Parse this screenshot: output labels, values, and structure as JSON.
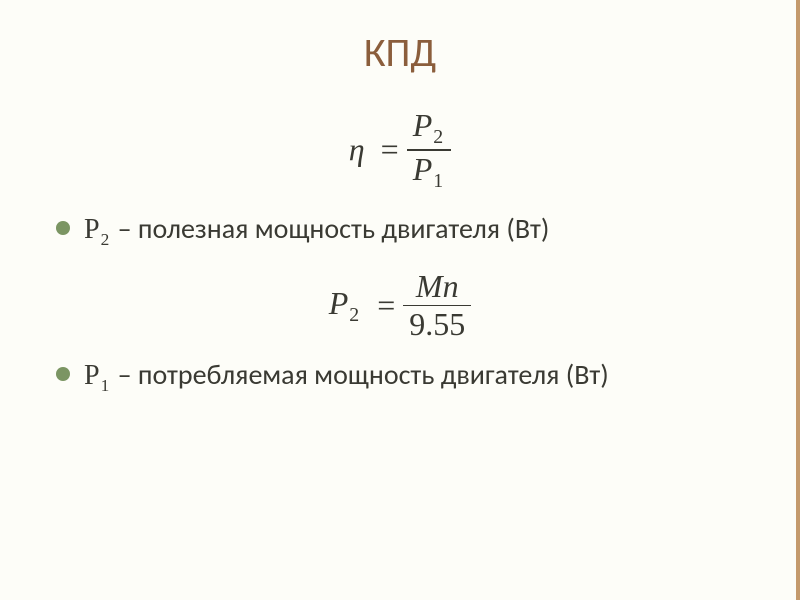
{
  "colors": {
    "background": "#fdfdf8",
    "accent_border": "#c49a6c",
    "title": "#8b5e3c",
    "bullet": "#7b9563",
    "text": "#3a3a33",
    "frac_bar": "#3a3a33"
  },
  "typography": {
    "title_fontsize": 40,
    "body_fontsize": 28,
    "formula_fontsize": 32,
    "title_fontfamily": "Calibri",
    "body_fontfamily": "Calibri",
    "formula_fontfamily": "Times New Roman",
    "formula_italic": true
  },
  "title": "КПД",
  "formula1": {
    "lhs_symbol": "η",
    "equals": "=",
    "numerator_var": "P",
    "numerator_sub": "2",
    "denominator_var": "P",
    "denominator_sub": "1"
  },
  "bullets": [
    {
      "var": "P",
      "sub": "2",
      "dash": " – ",
      "text": "полезная мощность двигателя (Вт)"
    },
    {
      "var": "P",
      "sub": "1",
      "dash": " – ",
      "text": "потребляемая мощность двигателя (Вт)"
    }
  ],
  "formula2": {
    "lhs_var": "P",
    "lhs_sub": "2",
    "equals": "=",
    "numerator": "Mn",
    "denominator": "9.55"
  }
}
